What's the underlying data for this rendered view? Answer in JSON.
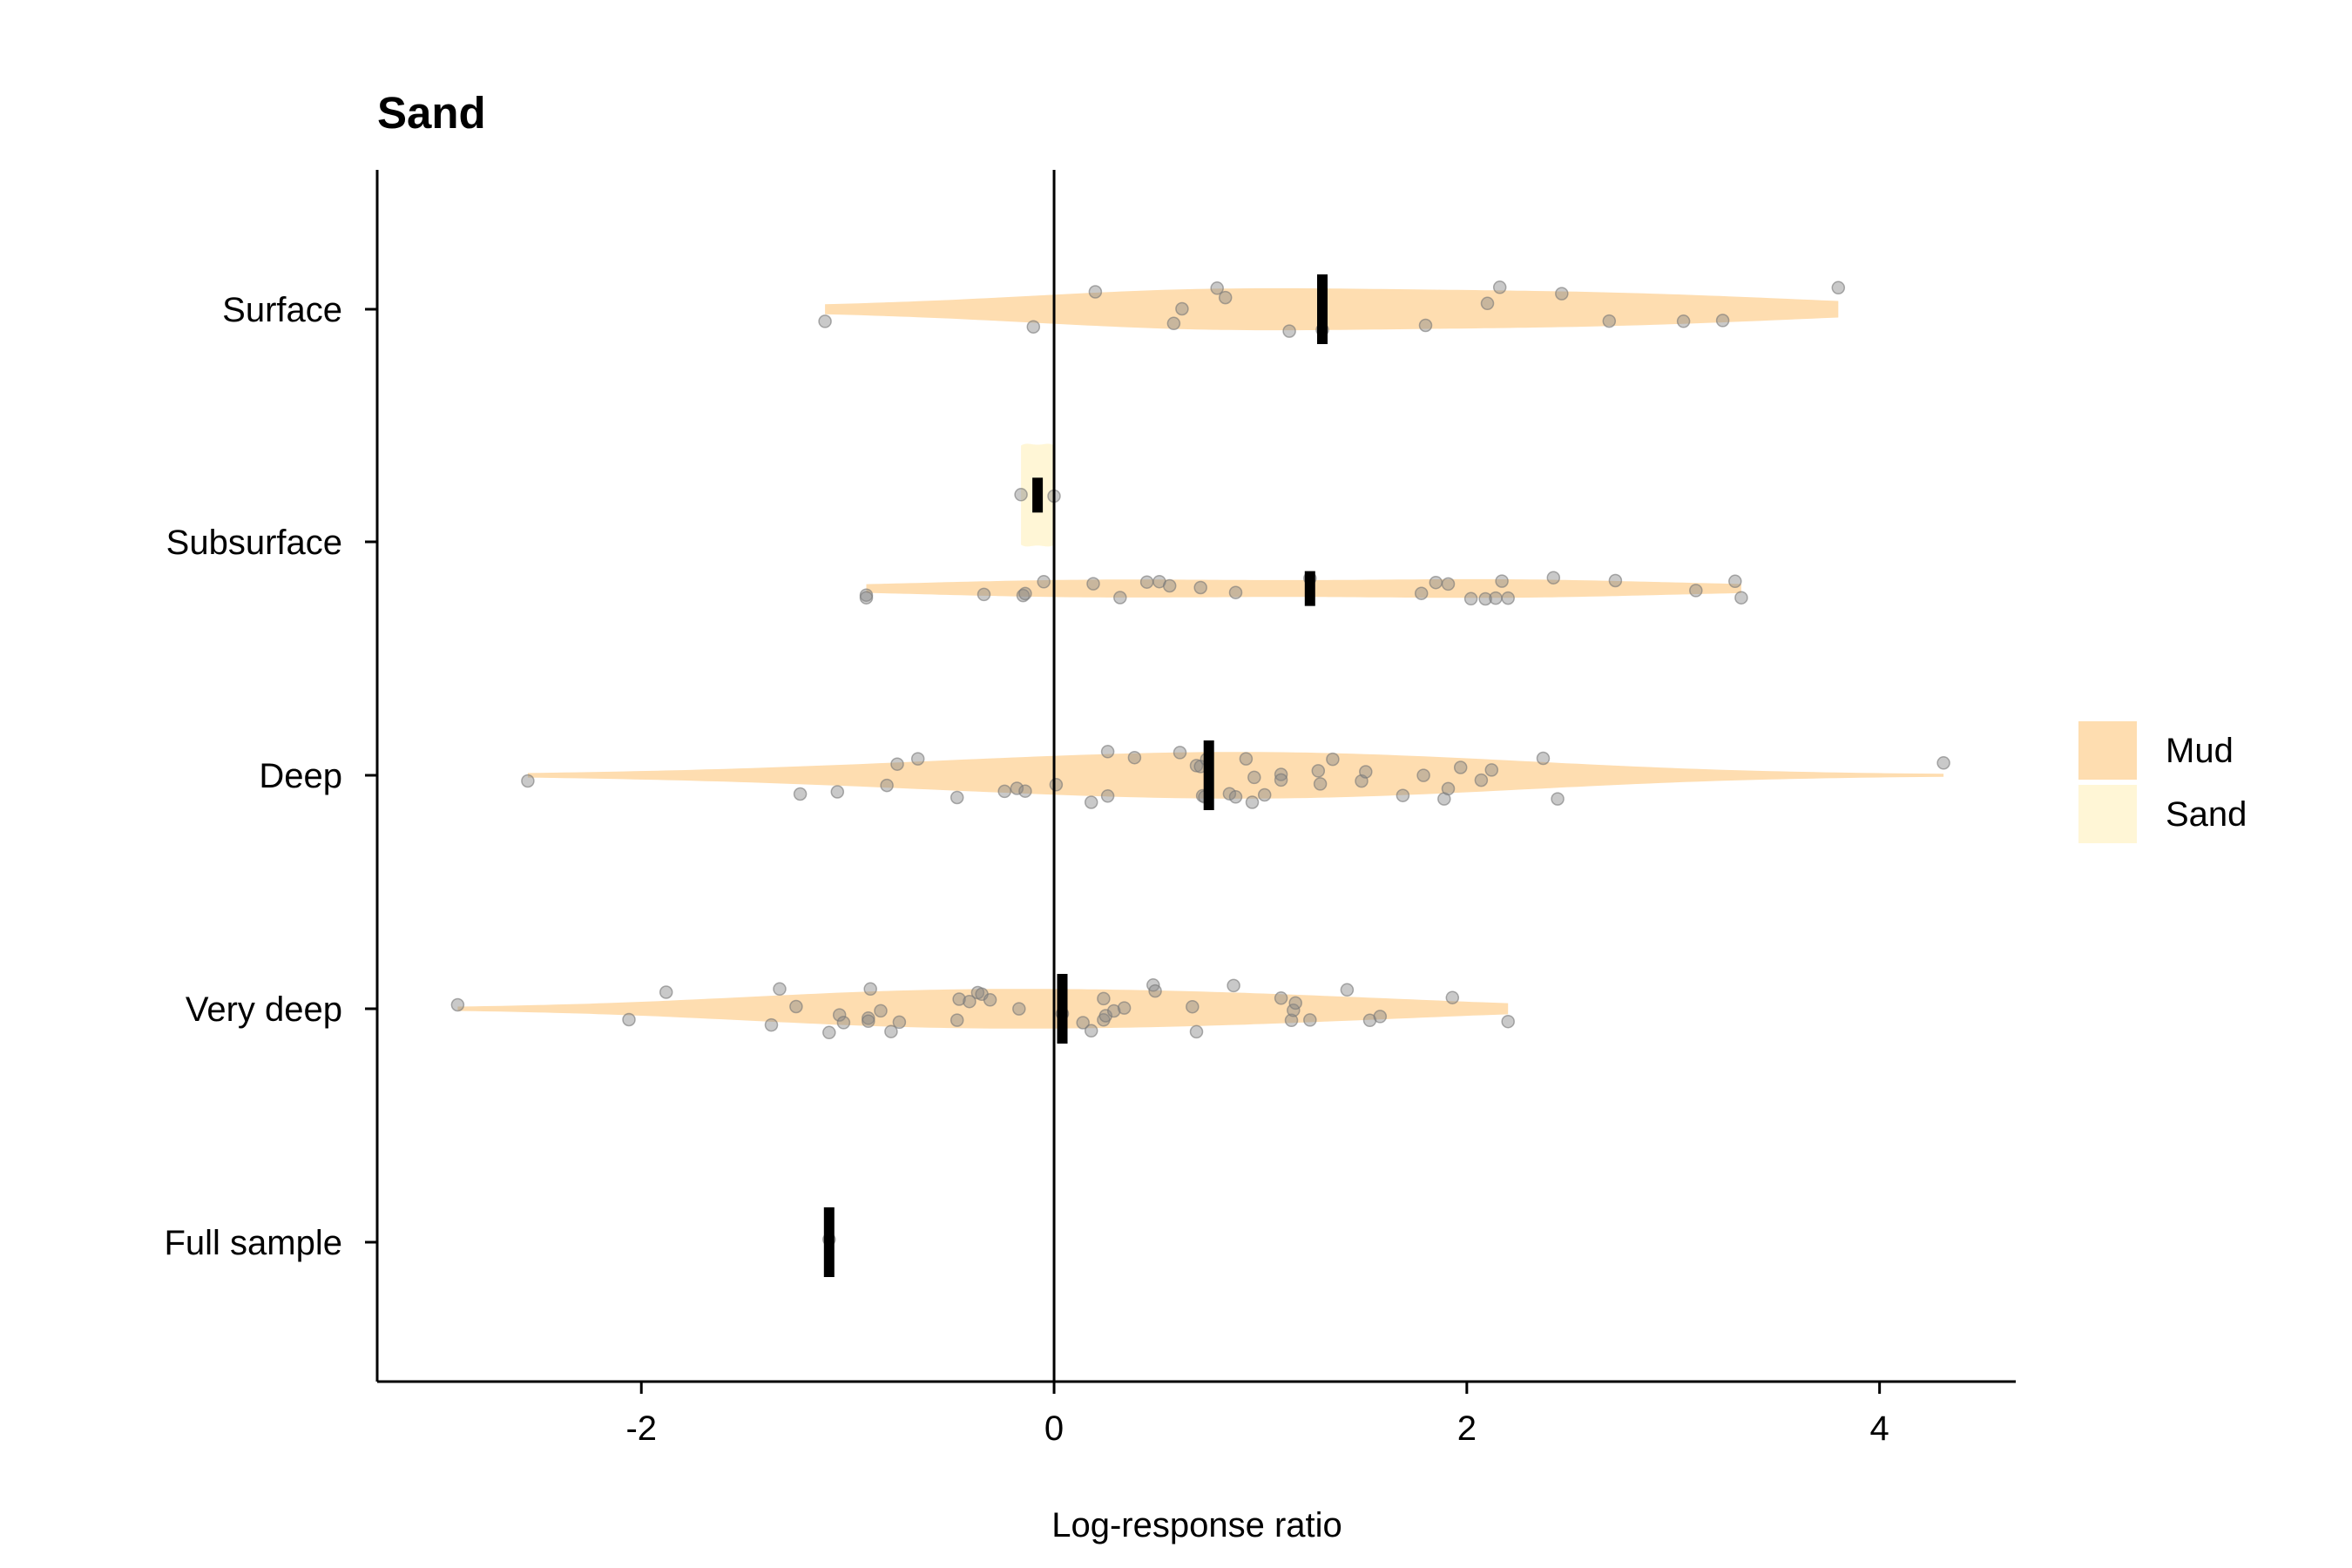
{
  "chart_data": {
    "type": "violin-jitter",
    "title": "Sand",
    "xlabel": "Log-response ratio",
    "ylabel": "",
    "xlim": [
      -3.28,
      4.66
    ],
    "xticks": [
      -2,
      0,
      2,
      4
    ],
    "xtick_labels": [
      "-2",
      "0",
      "2",
      "4"
    ],
    "reference_line_x": 0,
    "categories": [
      "Surface",
      "Subsurface",
      "Deep",
      "Very deep",
      "Full sample"
    ],
    "legend": {
      "placement": "right",
      "entries": [
        {
          "name": "Mud",
          "color": "#FEDDB0"
        },
        {
          "name": "Sand",
          "color": "#FFF6D6"
        }
      ]
    },
    "colors": {
      "mud": "#FEDDB0",
      "sand": "#FFF6D6",
      "points": "#888888",
      "median": "#000000",
      "axis": "#000000"
    },
    "series": [
      {
        "category": "Surface",
        "group": "Mud",
        "offset": 0,
        "halfwidth": 0.09,
        "median": 1.3,
        "points": [
          -1.11,
          -0.1,
          0.2,
          0.58,
          0.62,
          0.79,
          0.83,
          1.14,
          1.3,
          1.8,
          2.1,
          2.16,
          2.46,
          2.69,
          3.05,
          3.24,
          3.8
        ]
      },
      {
        "category": "Subsurface",
        "group": "Sand",
        "offset": 0.2,
        "halfwidth": 0.22,
        "median": -0.08,
        "points": [
          -0.16,
          0.0
        ]
      },
      {
        "category": "Subsurface",
        "group": "Mud",
        "offset": -0.2,
        "halfwidth": 0.04,
        "median": 1.24,
        "points": [
          -0.91,
          -0.91,
          -0.34,
          -0.15,
          -0.14,
          -0.05,
          0.19,
          0.32,
          0.45,
          0.51,
          0.56,
          0.71,
          0.88,
          1.24,
          1.78,
          1.85,
          1.91,
          2.02,
          2.09,
          2.14,
          2.17,
          2.2,
          2.42,
          2.72,
          3.11,
          3.3,
          3.33
        ]
      },
      {
        "category": "Deep",
        "group": "Mud",
        "offset": 0,
        "halfwidth": 0.1,
        "median": 0.75,
        "points": [
          -2.55,
          -1.23,
          -1.05,
          -0.81,
          -0.76,
          -0.66,
          -0.47,
          -0.24,
          -0.18,
          -0.14,
          0.01,
          0.18,
          0.26,
          0.26,
          0.39,
          0.61,
          0.69,
          0.71,
          0.72,
          0.73,
          0.74,
          0.85,
          0.88,
          0.93,
          0.96,
          0.97,
          1.02,
          1.1,
          1.1,
          1.28,
          1.29,
          1.35,
          1.49,
          1.51,
          1.69,
          1.79,
          1.89,
          1.91,
          1.97,
          2.07,
          2.12,
          2.37,
          2.44,
          4.31
        ]
      },
      {
        "category": "Very deep",
        "group": "Mud",
        "offset": 0,
        "halfwidth": 0.085,
        "median": 0.04,
        "points": [
          -2.89,
          -2.06,
          -1.88,
          -1.37,
          -1.33,
          -1.25,
          -1.09,
          -1.04,
          -1.02,
          -0.9,
          -0.9,
          -0.89,
          -0.84,
          -0.79,
          -0.75,
          -0.47,
          -0.46,
          -0.41,
          -0.37,
          -0.35,
          -0.31,
          -0.17,
          0.04,
          0.14,
          0.18,
          0.24,
          0.24,
          0.25,
          0.29,
          0.34,
          0.48,
          0.49,
          0.67,
          0.69,
          0.87,
          1.1,
          1.15,
          1.16,
          1.17,
          1.24,
          1.42,
          1.53,
          1.58,
          1.93,
          2.2
        ]
      },
      {
        "category": "Full sample",
        "group": "Mud",
        "offset": 0,
        "halfwidth": 0,
        "median": -1.09,
        "points": [
          -1.09
        ]
      }
    ]
  }
}
